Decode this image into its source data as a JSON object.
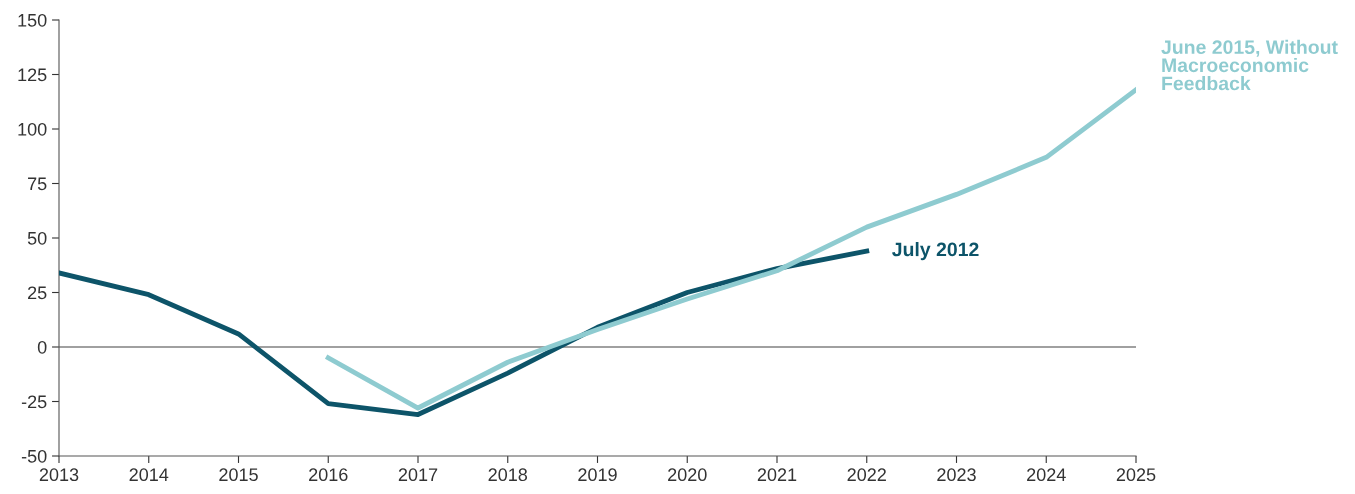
{
  "chart_data": {
    "type": "line",
    "xlim": [
      2013,
      2025
    ],
    "xticks": [
      2013,
      2014,
      2015,
      2016,
      2017,
      2018,
      2019,
      2020,
      2021,
      2022,
      2023,
      2024,
      2025
    ],
    "ylim": [
      -50,
      150
    ],
    "yticks": [
      -50,
      -25,
      0,
      25,
      50,
      75,
      100,
      125,
      150
    ],
    "grid": false,
    "legend": false,
    "marker": "none",
    "line_style": "solid",
    "ref_lines": [
      {
        "axis": "y",
        "value": 0,
        "color": "#808080"
      }
    ],
    "series": [
      {
        "name": "July 2012",
        "color": "#0d5469",
        "x": [
          2013,
          2014,
          2015,
          2016,
          2017,
          2018,
          2019,
          2020,
          2021,
          2022
        ],
        "values": [
          34,
          24,
          6,
          -26,
          -31,
          -12,
          9,
          25,
          36,
          44
        ]
      },
      {
        "name": "June 2015, Without\nMacroeconomic\nFeedback",
        "color": "#8ecbd0",
        "x": [
          2016,
          2017,
          2018,
          2019,
          2020,
          2021,
          2022,
          2023,
          2024,
          2025
        ],
        "values": [
          -5,
          -28,
          -7,
          8,
          22,
          35,
          55,
          70,
          87,
          118
        ]
      }
    ]
  }
}
